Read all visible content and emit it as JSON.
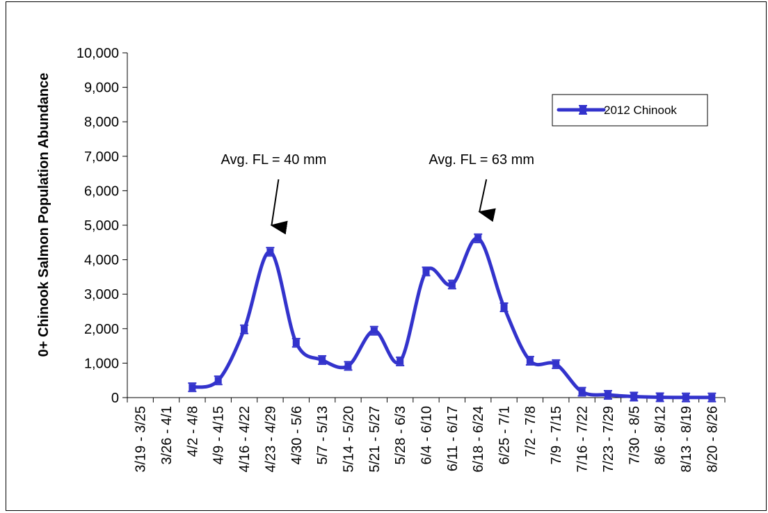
{
  "chart_data": {
    "type": "line",
    "categories": [
      "3/19 - 3/25",
      "3/26 - 4/1",
      "4/2 - 4/8",
      "4/9 - 4/15",
      "4/16 - 4/22",
      "4/23 - 4/29",
      "4/30 - 5/6",
      "5/7 - 5/13",
      "5/14 - 5/20",
      "5/21 - 5/27",
      "5/28 - 6/3",
      "6/4 - 6/10",
      "6/11 - 6/17",
      "6/18 - 6/24",
      "6/25 - 7/1",
      "7/2 - 7/8",
      "7/9 - 7/15",
      "7/16 - 7/22",
      "7/23 - 7/29",
      "7/30 - 8/5",
      "8/6 - 8/12",
      "8/13 - 8/19",
      "8/20 - 8/26"
    ],
    "series": [
      {
        "name": "2012 Chinook",
        "color": "#3333CC",
        "values": [
          null,
          null,
          300,
          500,
          1980,
          4230,
          1590,
          1090,
          920,
          1940,
          1050,
          3660,
          3280,
          4620,
          2620,
          1070,
          970,
          170,
          80,
          30,
          10,
          5,
          5
        ]
      }
    ],
    "ylabel": "0+ Chinook Salmon Population Abundance",
    "xlabel": "",
    "ylim": [
      0,
      10000
    ],
    "yticks": [
      "0",
      "1,000",
      "2,000",
      "3,000",
      "4,000",
      "5,000",
      "6,000",
      "7,000",
      "8,000",
      "9,000",
      "10,000"
    ],
    "ytick_values": [
      0,
      1000,
      2000,
      3000,
      4000,
      5000,
      6000,
      7000,
      8000,
      9000,
      10000
    ],
    "annotations": [
      {
        "text": "Avg. FL = 40 mm",
        "target_index": 5
      },
      {
        "text": "Avg. FL = 63 mm",
        "target_index": 13
      }
    ],
    "legend": {
      "label": "2012 Chinook",
      "placement": "top-right"
    },
    "grid": false
  }
}
